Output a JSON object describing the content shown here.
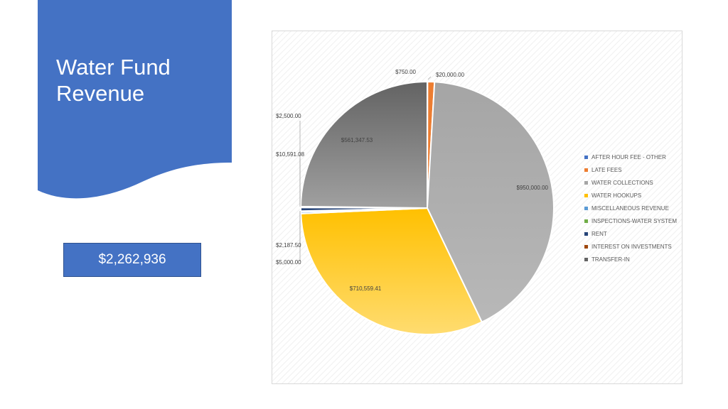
{
  "slide": {
    "title": "Water Fund Revenue",
    "total": "$2,262,936",
    "accent_color": "#4472c4"
  },
  "chart_data": {
    "type": "pie",
    "title": "",
    "legend_position": "right",
    "start_angle": "top, clockwise",
    "slices": [
      {
        "name": "AFTER HOUR FEE - OTHER",
        "value": 750.0,
        "label": "$750.00",
        "color": "#4472c4"
      },
      {
        "name": "LATE FEES",
        "value": 20000.0,
        "label": "$20,000.00",
        "color": "#ed7d31"
      },
      {
        "name": "WATER COLLECTIONS",
        "value": 950000.0,
        "label": "$950,000.00",
        "color": "#a5a5a5"
      },
      {
        "name": "WATER HOOKUPS",
        "value": 710559.41,
        "label": "$710,559.41",
        "color": "#ffc000"
      },
      {
        "name": "MISCELLANEOUS REVENUE",
        "value": 5000.0,
        "label": "$5,000.00",
        "color": "#5b9bd5"
      },
      {
        "name": "INSPECTIONS-WATER SYSTEM",
        "value": 2187.5,
        "label": "$2,187.50",
        "color": "#70ad47"
      },
      {
        "name": "RENT",
        "value": 10591.08,
        "label": "$10,591.08",
        "color": "#264478"
      },
      {
        "name": "INTEREST ON INVESTMENTS",
        "value": 2500.0,
        "label": "$2,500.00",
        "color": "#9e480e"
      },
      {
        "name": "TRANSFER-IN",
        "value": 561347.53,
        "label": "$561,347.53",
        "color": "#636363"
      }
    ]
  }
}
